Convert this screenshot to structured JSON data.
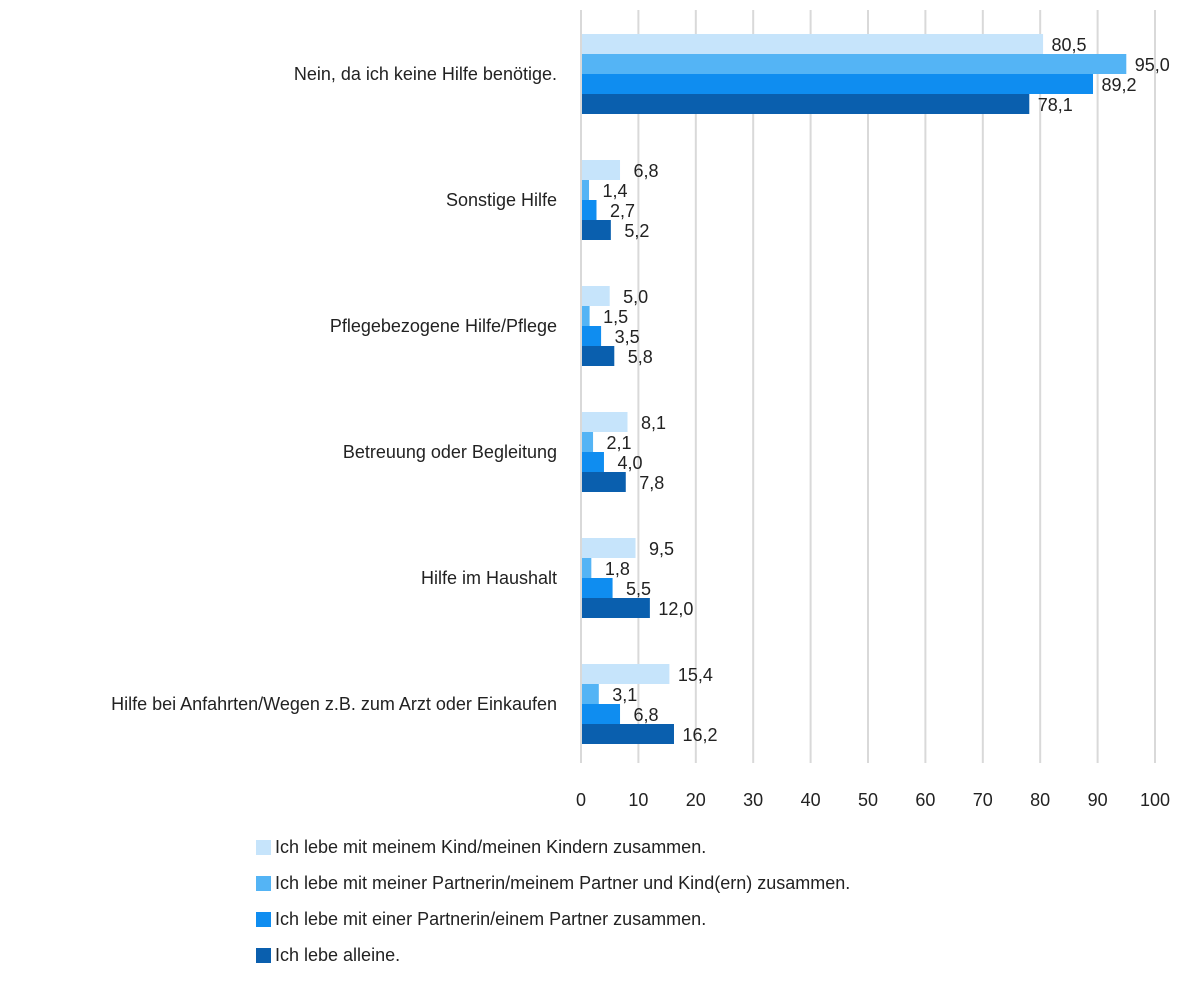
{
  "chart_data": {
    "type": "bar",
    "orientation": "horizontal",
    "categories": [
      "Nein, da ich keine Hilfe benötige.",
      "Sonstige Hilfe",
      "Pflegebezogene Hilfe/Pflege",
      "Betreuung oder Begleitung",
      "Hilfe im Haushalt",
      "Hilfe bei Anfahrten/Wegen z.B. zum Arzt oder Einkaufen"
    ],
    "series": [
      {
        "name": "Ich lebe mit meinem Kind/meinen Kindern zusammen.",
        "color": "#c6e4fb",
        "values": [
          80.5,
          6.8,
          5.0,
          8.1,
          9.5,
          15.4
        ],
        "labels": [
          "80,5",
          "6,8",
          "5,0",
          "8,1",
          "9,5",
          "15,4"
        ]
      },
      {
        "name": "Ich lebe mit meiner Partnerin/meinem Partner und Kind(ern) zusammen.",
        "color": "#54b4f5",
        "values": [
          95.0,
          1.4,
          1.5,
          2.1,
          1.8,
          3.1
        ],
        "labels": [
          "95,0",
          "1,4",
          "1,5",
          "2,1",
          "1,8",
          "3,1"
        ]
      },
      {
        "name": "Ich lebe mit einer Partnerin/einem Partner zusammen.",
        "color": "#0f8df0",
        "values": [
          89.2,
          2.7,
          3.5,
          4.0,
          5.5,
          6.8
        ],
        "labels": [
          "89,2",
          "2,7",
          "3,5",
          "4,0",
          "5,5",
          "6,8"
        ]
      },
      {
        "name": "Ich lebe alleine.",
        "color": "#0a5fae",
        "values": [
          78.1,
          5.2,
          5.8,
          7.8,
          12.0,
          16.2
        ],
        "labels": [
          "78,1",
          "5,2",
          "5,8",
          "7,8",
          "12,0",
          "16,2"
        ]
      }
    ],
    "xlim": [
      0,
      100
    ],
    "xticks": [
      "0",
      "10",
      "20",
      "30",
      "40",
      "50",
      "60",
      "70",
      "80",
      "90",
      "100"
    ],
    "grid": true,
    "legend_position": "bottom",
    "title": "",
    "xlabel": "",
    "ylabel": ""
  }
}
